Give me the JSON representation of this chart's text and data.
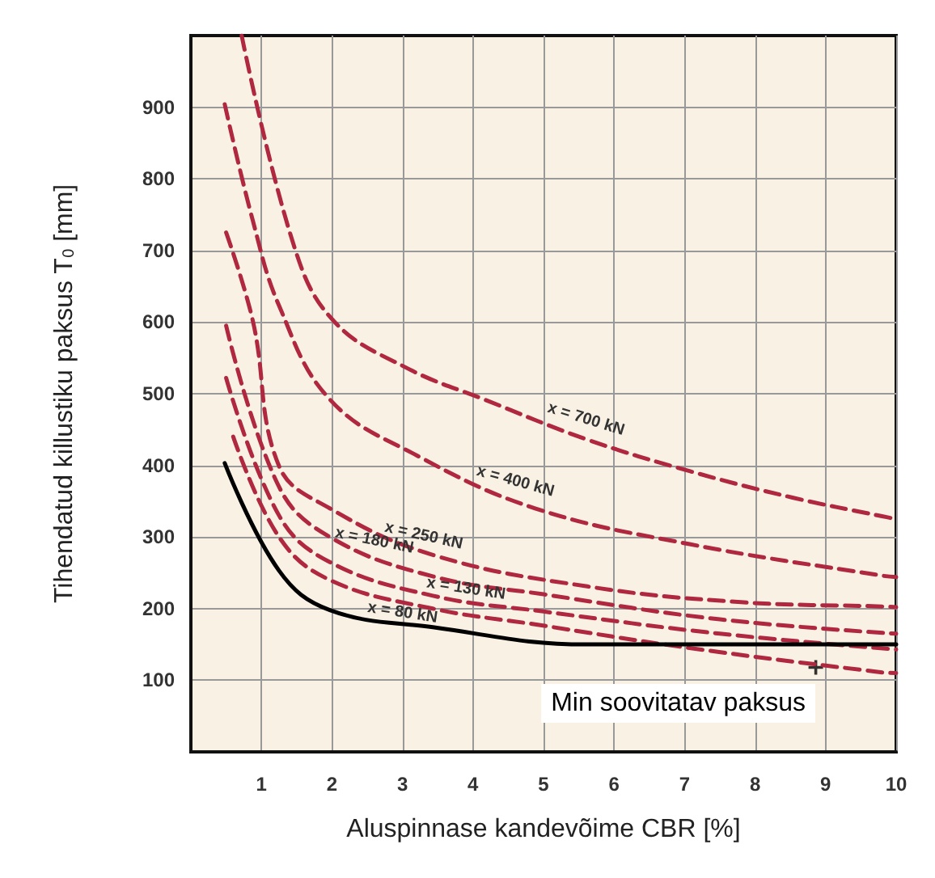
{
  "chart_data": {
    "type": "line",
    "xlabel": "Aluspinnase kandevõime CBR [%]",
    "ylabel": "Tihendatud killustiku paksus T$_{0}$ [mm]",
    "xlim": [
      0,
      10
    ],
    "xticks": [
      1,
      2,
      3,
      4,
      5,
      6,
      7,
      8,
      9,
      10
    ],
    "ylim": [
      0,
      1000
    ],
    "yticks": [
      100,
      200,
      300,
      400,
      500,
      600,
      700,
      800,
      900
    ],
    "grid": true,
    "marker": "none",
    "series": [
      {
        "name": "x = 700 kN",
        "color": "#b0283f",
        "line_style": "dashed",
        "x": [
          0.72,
          1.47,
          2.03,
          3.06,
          4.16,
          5.62,
          7.07,
          8.53,
          9.8,
          10
        ],
        "values": [
          1000,
          704,
          601,
          536,
          492,
          436,
          392,
          355,
          329,
          325
        ]
      },
      {
        "name": "x = 400 kN",
        "color": "#b0283f",
        "line_style": "dashed",
        "x": [
          0.48,
          0.88,
          1.25,
          1.97,
          3.2,
          4.88,
          7.07,
          9.8,
          10
        ],
        "values": [
          904,
          741,
          623,
          492,
          414,
          340,
          290,
          246,
          244
        ]
      },
      {
        "name": "x = 250 kN",
        "color": "#b0283f",
        "line_style": "dashed",
        "x": [
          0.5,
          0.88,
          1.25,
          1.97,
          3.43,
          5.62,
          7.8,
          9.8,
          10
        ],
        "values": [
          725,
          601,
          399,
          340,
          275,
          231,
          209,
          203,
          202
        ]
      },
      {
        "name": "x = 180 kN",
        "color": "#b0283f",
        "line_style": "dashed",
        "x": [
          0.5,
          1.25,
          1.97,
          3.43,
          5.0,
          7.5,
          10
        ],
        "values": [
          595,
          370,
          300,
          245,
          220,
          185,
          165
        ]
      },
      {
        "name": "x = 130 kN",
        "color": "#b0283f",
        "line_style": "dashed",
        "x": [
          0.5,
          1.25,
          1.97,
          3.43,
          5.0,
          7.5,
          10
        ],
        "values": [
          522,
          330,
          265,
          218,
          196,
          165,
          143
        ]
      },
      {
        "name": "x = 80 kN",
        "color": "#b0283f",
        "line_style": "dashed",
        "x": [
          0.6,
          1.25,
          1.97,
          3.43,
          4.88,
          7.07,
          9.8,
          10
        ],
        "values": [
          440,
          300,
          240,
          200,
          178,
          145,
          111,
          110
        ]
      },
      {
        "color": "#000000",
        "line_style": "solid",
        "x": [
          0.48,
          1.25,
          1.97,
          3.43,
          5.6,
          6,
          8,
          10
        ],
        "values": [
          403,
          253,
          198,
          174,
          150,
          150,
          150,
          150
        ]
      },
      {
        "type": "scatter",
        "color": "#000000",
        "marker": "cross",
        "x": [
          8.86
        ],
        "values": [
          118
        ]
      }
    ],
    "annotations": [
      "Min soovitatav paksus"
    ]
  }
}
